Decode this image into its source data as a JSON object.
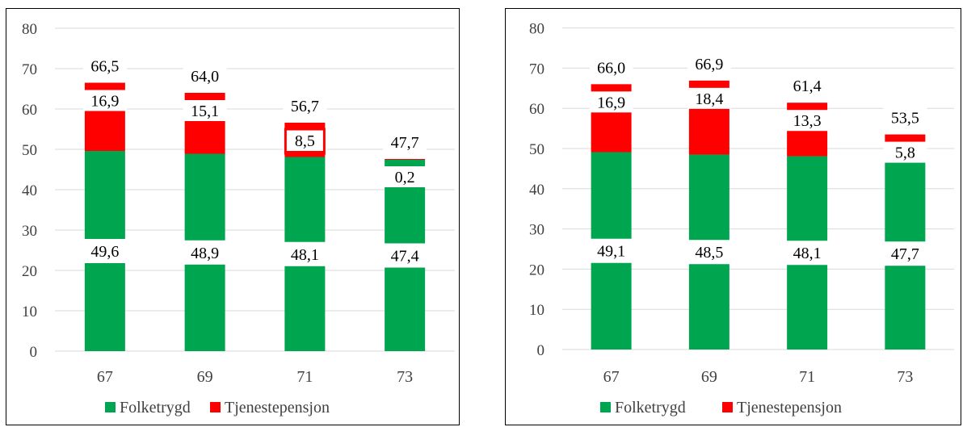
{
  "colors": {
    "folketrygd": "#00a550",
    "tjenestepensjon": "#ff0000",
    "grid": "#d9d9d9",
    "label_bg": "#ffffff"
  },
  "chart_data": [
    {
      "type": "bar",
      "stacked": true,
      "categories": [
        "67",
        "69",
        "71",
        "73"
      ],
      "series": [
        {
          "name": "Folketrygd",
          "values": [
            49.6,
            48.9,
            48.1,
            47.4
          ]
        },
        {
          "name": "Tjenestepensjon",
          "values": [
            16.9,
            15.1,
            8.5,
            0.2
          ]
        }
      ],
      "totals": [
        66.5,
        64.0,
        56.7,
        47.7
      ],
      "data_labels": {
        "folketrygd": [
          "49,6",
          "48,9",
          "48,1",
          "47,4"
        ],
        "tjenestepensjon": [
          "16,9",
          "15,1",
          "8,5",
          "0,2"
        ],
        "totals": [
          "66,5",
          "64,0",
          "56,7",
          "47,7"
        ]
      },
      "highlight_label_index": 2,
      "ylim": [
        0,
        80
      ],
      "yticks": [
        "0",
        "10",
        "20",
        "30",
        "40",
        "50",
        "60",
        "70",
        "80"
      ],
      "grid": true,
      "legend": "bottom",
      "title": "",
      "xlabel": "",
      "ylabel": ""
    },
    {
      "type": "bar",
      "stacked": true,
      "categories": [
        "67",
        "69",
        "71",
        "73"
      ],
      "series": [
        {
          "name": "Folketrygd",
          "values": [
            49.1,
            48.5,
            48.1,
            47.7
          ]
        },
        {
          "name": "Tjenestepensjon",
          "values": [
            16.9,
            18.4,
            13.3,
            5.8
          ]
        }
      ],
      "totals": [
        66.0,
        66.9,
        61.4,
        53.5
      ],
      "data_labels": {
        "folketrygd": [
          "49,1",
          "48,5",
          "48,1",
          "47,7"
        ],
        "tjenestepensjon": [
          "16,9",
          "18,4",
          "13,3",
          "5,8"
        ],
        "totals": [
          "66,0",
          "66,9",
          "61,4",
          "53,5"
        ]
      },
      "highlight_label_index": -1,
      "ylim": [
        0,
        80
      ],
      "yticks": [
        "0",
        "10",
        "20",
        "30",
        "40",
        "50",
        "60",
        "70",
        "80"
      ],
      "grid": true,
      "legend": "bottom",
      "title": "",
      "xlabel": "",
      "ylabel": ""
    }
  ]
}
